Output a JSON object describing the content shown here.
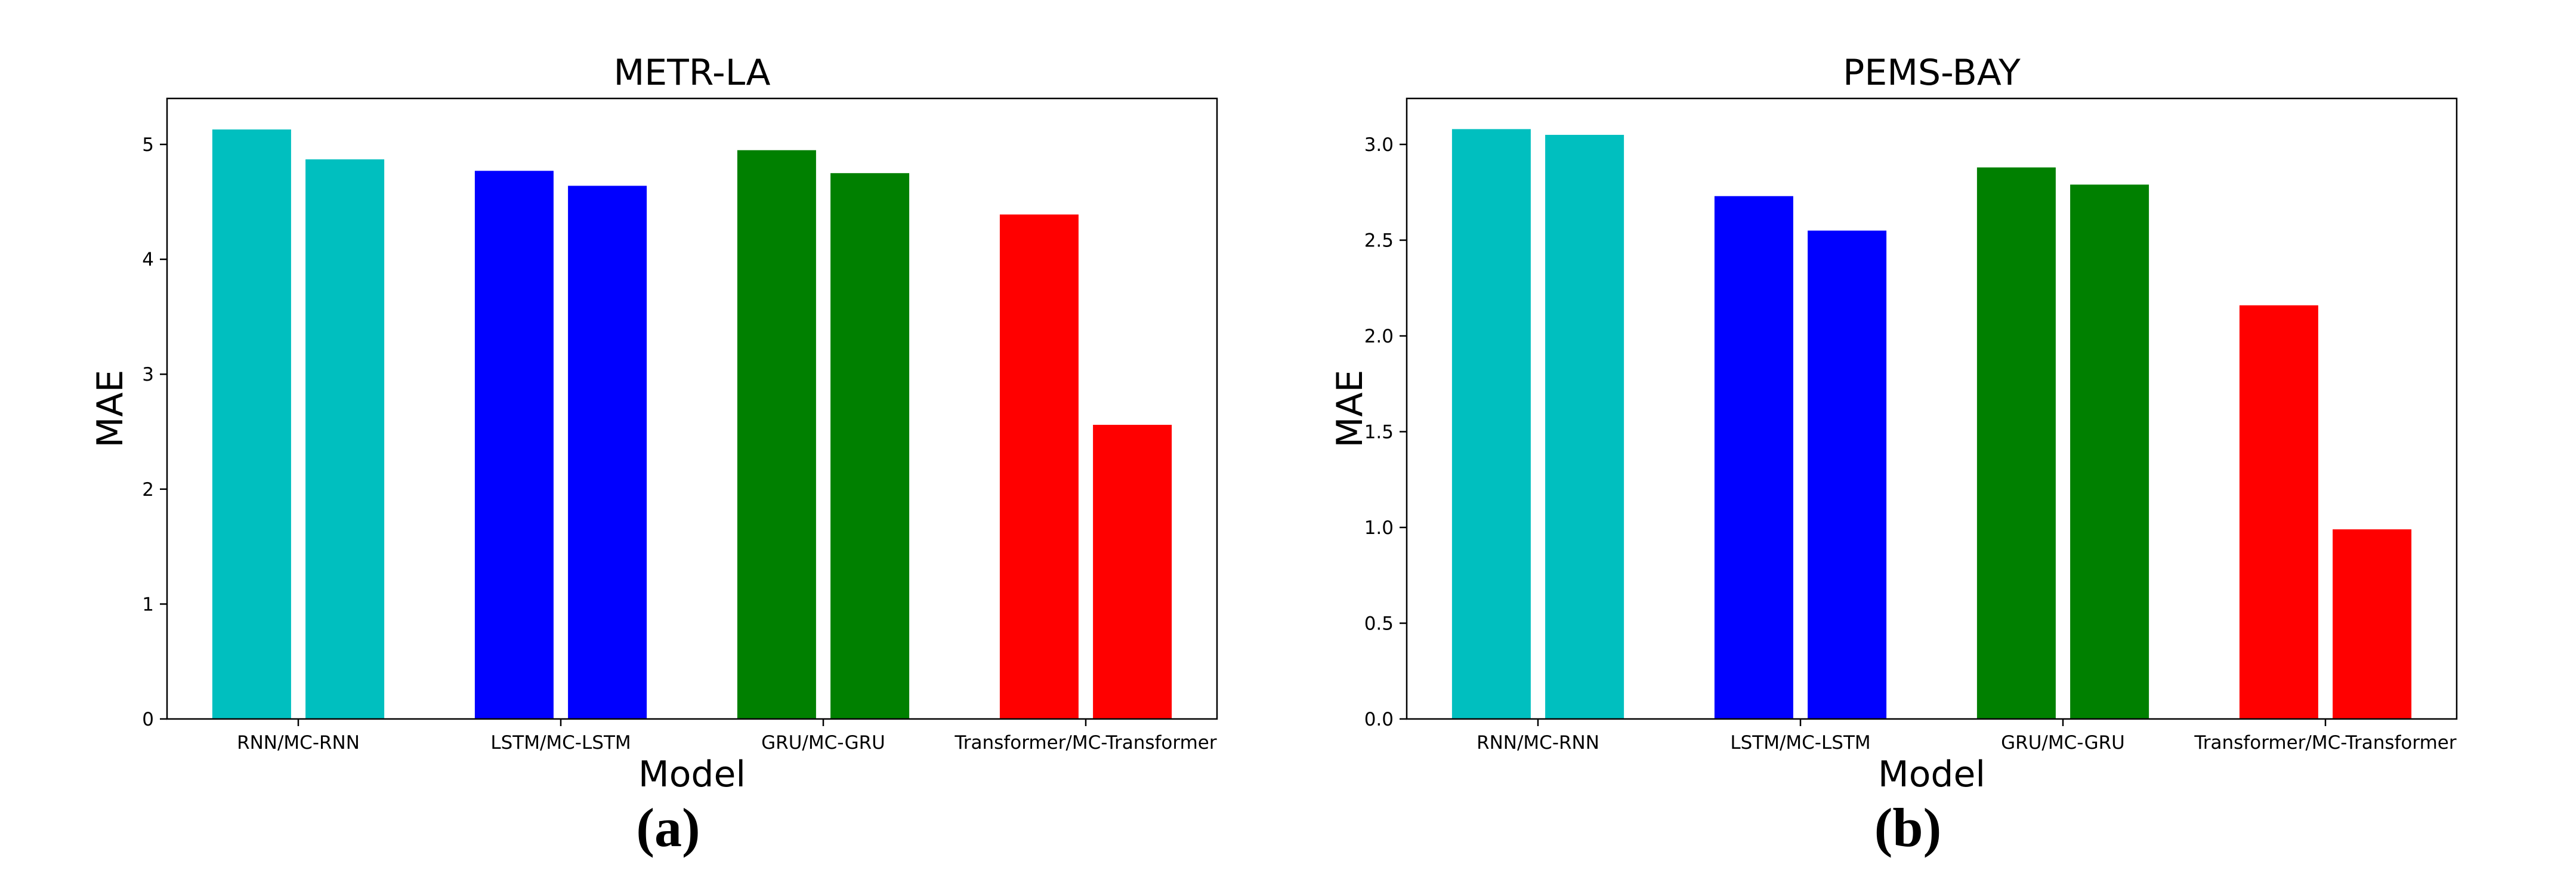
{
  "chart_data": [
    {
      "type": "bar",
      "title": "METR-LA",
      "xlabel": "Model",
      "ylabel": "MAE",
      "panel_label": "(a)",
      "categories": [
        "RNN/MC-RNN",
        "LSTM/MC-LSTM",
        "GRU/MC-GRU",
        "Transformer/MC-Transformer"
      ],
      "values": [
        [
          5.13,
          4.87
        ],
        [
          4.77,
          4.64
        ],
        [
          4.95,
          4.75
        ],
        [
          4.39,
          2.56
        ]
      ],
      "colors": [
        "#00bfbf",
        "#0000ff",
        "#008000",
        "#ff0000"
      ],
      "ylim": [
        0,
        5.4
      ],
      "yticks": [
        0,
        1,
        2,
        3,
        4,
        5
      ],
      "ytick_labels": [
        "0",
        "1",
        "2",
        "3",
        "4",
        "5"
      ],
      "grid": false,
      "legend": "none"
    },
    {
      "type": "bar",
      "title": "PEMS-BAY",
      "xlabel": "Model",
      "ylabel": "MAE",
      "panel_label": "(b)",
      "categories": [
        "RNN/MC-RNN",
        "LSTM/MC-LSTM",
        "GRU/MC-GRU",
        "Transformer/MC-Transformer"
      ],
      "values": [
        [
          3.08,
          3.05
        ],
        [
          2.73,
          2.55
        ],
        [
          2.88,
          2.79
        ],
        [
          2.16,
          0.99
        ]
      ],
      "colors": [
        "#00bfbf",
        "#0000ff",
        "#008000",
        "#ff0000"
      ],
      "ylim": [
        0,
        3.24
      ],
      "yticks": [
        0,
        0.5,
        1,
        1.5,
        2,
        2.5,
        3
      ],
      "ytick_labels": [
        "0.0",
        "0.5",
        "1.0",
        "1.5",
        "2.0",
        "2.5",
        "3.0"
      ],
      "grid": false,
      "legend": "none"
    }
  ]
}
